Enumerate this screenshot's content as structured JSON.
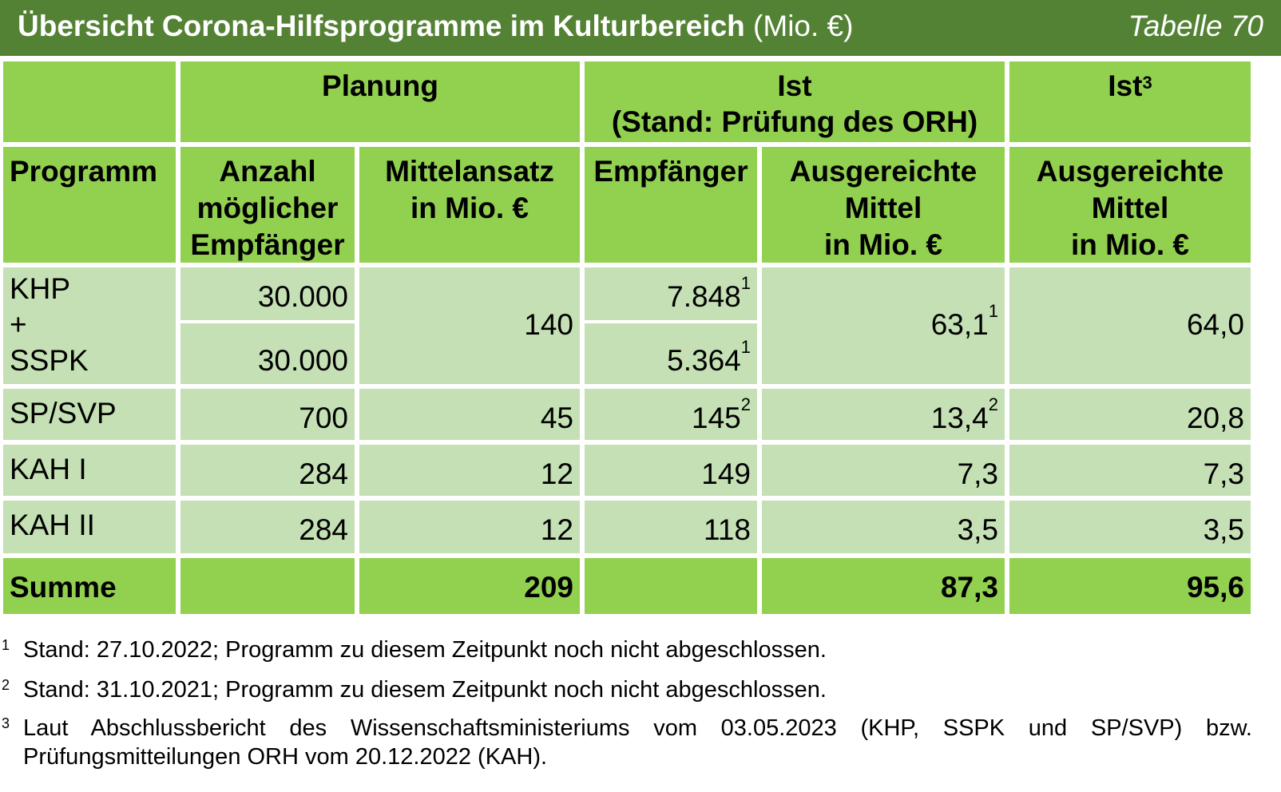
{
  "title": {
    "main": "Übersicht Corona-Hilfsprogramme im Kulturbereich",
    "unit": "(Mio. €)",
    "table_no": "Tabelle 70"
  },
  "header": {
    "group_planung": "Planung",
    "group_ist_line1": "Ist",
    "group_ist_line2": "(Stand: Prüfung des ORH)",
    "group_ist3": "Ist",
    "group_ist3_sup": "3",
    "col_programm": "Programm",
    "col_anzahl": [
      "Anzahl",
      "möglicher",
      "Empfänger"
    ],
    "col_mittelansatz": [
      "Mittelansatz",
      "in Mio. €"
    ],
    "col_empfaenger": "Empfänger",
    "col_ausgereicht": [
      "Ausgereichte",
      "Mittel",
      "in Mio. €"
    ],
    "col_ausgereicht3": [
      "Ausgereichte",
      "Mittel",
      "in Mio. €"
    ]
  },
  "rows": {
    "khp_label": [
      "KHP",
      "+",
      "SSPK"
    ],
    "khp_anzahl": "30.000",
    "sspk_anzahl": "30.000",
    "khp_sspk_mittel": "140",
    "khp_empf": "7.848",
    "khp_empf_sup": "1",
    "sspk_empf": "5.364",
    "sspk_empf_sup": "1",
    "khp_sspk_ausg": "63,1",
    "khp_sspk_ausg_sup": "1",
    "khp_sspk_ist3": "64,0",
    "spsvp": {
      "label": "SP/SVP",
      "anzahl": "700",
      "mittel": "45",
      "empf": "145",
      "empf_sup": "2",
      "ausg": "13,4",
      "ausg_sup": "2",
      "ist3": "20,8"
    },
    "kah1": {
      "label": "KAH I",
      "anzahl": "284",
      "mittel": "12",
      "empf": "149",
      "ausg": "7,3",
      "ist3": "7,3"
    },
    "kah2": {
      "label": "KAH II",
      "anzahl": "284",
      "mittel": "12",
      "empf": "118",
      "ausg": "3,5",
      "ist3": "3,5"
    },
    "summe": {
      "label": "Summe",
      "mittel": "209",
      "ausg": "87,3",
      "ist3": "95,6"
    }
  },
  "footnotes": [
    {
      "n": "1",
      "text": "Stand: 27.10.2022; Programm zu diesem Zeitpunkt noch nicht abgeschlossen."
    },
    {
      "n": "2",
      "text": "Stand: 31.10.2021; Programm zu diesem Zeitpunkt noch nicht abgeschlossen."
    },
    {
      "n": "3",
      "text_line1": "Laut Abschlussbericht des Wissenschaftsministeriums vom 03.05.2023 (KHP, SSPK und SP/SVP) bzw.",
      "text_line2": "Prüfungsmitteilungen ORH vom 20.12.2022 (KAH)."
    }
  ],
  "colors": {
    "title_bg": "#548235",
    "header_bg": "#92d050",
    "body_bg": "#c5e0b4"
  }
}
